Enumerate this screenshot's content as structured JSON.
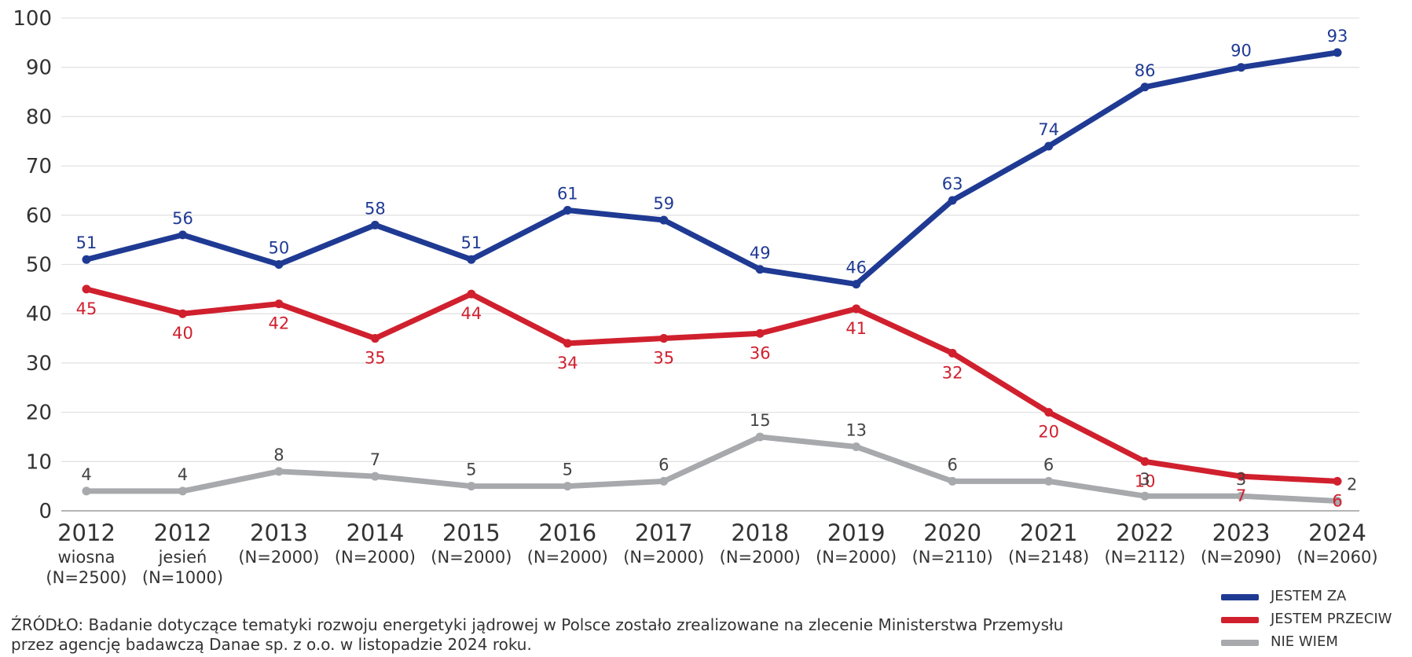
{
  "chart_data": {
    "type": "line",
    "y_axis": {
      "ticks": [
        0,
        10,
        20,
        30,
        40,
        50,
        60,
        70,
        80,
        90,
        100
      ],
      "ylim": [
        0,
        100
      ]
    },
    "grid": "horizontal",
    "legend_position": "bottom-right",
    "categories": [
      {
        "year": "2012",
        "sub": [
          "wiosna",
          "(N=2500)"
        ]
      },
      {
        "year": "2012",
        "sub": [
          "jesień",
          "(N=1000)"
        ]
      },
      {
        "year": "2013",
        "sub": [
          "(N=2000)"
        ]
      },
      {
        "year": "2014",
        "sub": [
          "(N=2000)"
        ]
      },
      {
        "year": "2015",
        "sub": [
          "(N=2000)"
        ]
      },
      {
        "year": "2016",
        "sub": [
          "(N=2000)"
        ]
      },
      {
        "year": "2017",
        "sub": [
          "(N=2000)"
        ]
      },
      {
        "year": "2018",
        "sub": [
          "(N=2000)"
        ]
      },
      {
        "year": "2019",
        "sub": [
          "(N=2000)"
        ]
      },
      {
        "year": "2020",
        "sub": [
          "(N=2110)"
        ]
      },
      {
        "year": "2021",
        "sub": [
          "(N=2148)"
        ]
      },
      {
        "year": "2022",
        "sub": [
          "(N=2112)"
        ]
      },
      {
        "year": "2023",
        "sub": [
          "(N=2090)"
        ]
      },
      {
        "year": "2024",
        "sub": [
          "(N=2060)"
        ]
      }
    ],
    "series": [
      {
        "name": "JESTEM ZA",
        "color": "#1f3a93",
        "label_color": "#1f3a93",
        "values": [
          51,
          56,
          50,
          58,
          51,
          61,
          59,
          49,
          46,
          63,
          74,
          86,
          90,
          93
        ],
        "label_position": "above"
      },
      {
        "name": "JESTEM PRZECIW",
        "color": "#d0202e",
        "label_color": "#d0202e",
        "values": [
          45,
          40,
          42,
          35,
          44,
          34,
          35,
          36,
          41,
          32,
          20,
          10,
          7,
          6
        ],
        "label_position": "below"
      },
      {
        "name": "NIE WIEM",
        "color": "#a7a9ad",
        "label_color": "#444444",
        "values": [
          4,
          4,
          8,
          7,
          5,
          5,
          6,
          15,
          13,
          6,
          6,
          3,
          3,
          2
        ],
        "label_position": "above"
      }
    ]
  },
  "source_text": [
    "ŹRÓDŁO: Badanie dotyczące tematyki rozwoju energetyki jądrowej w Polsce zostało zrealizowane na zlecenie Ministerstwa Przemysłu",
    "przez agencję badawczą Danae sp. z o.o. w listopadzie 2024 roku."
  ]
}
